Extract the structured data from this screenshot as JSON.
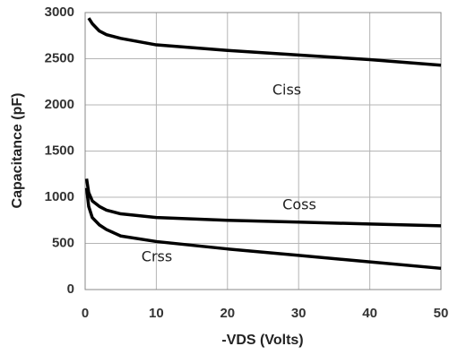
{
  "chart_data": {
    "type": "line",
    "x_label": "-VDS (Volts)",
    "y_label": "Capacitance (pF)",
    "xlim": [
      0,
      50
    ],
    "xticks": [
      0,
      10,
      20,
      30,
      40,
      50
    ],
    "ylim": [
      0,
      3000
    ],
    "yticks": [
      0,
      500,
      1000,
      1500,
      2000,
      2500,
      3000
    ],
    "grid": true,
    "series": [
      {
        "name": "Ciss",
        "color": "#000000",
        "x": [
          0.5,
          1,
          2,
          3,
          5,
          10,
          20,
          30,
          40,
          50
        ],
        "values": [
          2940,
          2880,
          2800,
          2760,
          2720,
          2650,
          2590,
          2540,
          2490,
          2430
        ]
      },
      {
        "name": "Coss",
        "color": "#000000",
        "x": [
          0.2,
          0.5,
          1,
          2,
          3,
          5,
          10,
          20,
          30,
          40,
          50
        ],
        "values": [
          1200,
          1050,
          960,
          900,
          860,
          820,
          780,
          750,
          730,
          710,
          690
        ]
      },
      {
        "name": "Crss",
        "color": "#000000",
        "x": [
          0.2,
          0.5,
          1,
          2,
          3,
          5,
          10,
          20,
          30,
          40,
          50
        ],
        "values": [
          1100,
          900,
          780,
          700,
          650,
          580,
          520,
          440,
          370,
          300,
          230
        ]
      }
    ]
  }
}
